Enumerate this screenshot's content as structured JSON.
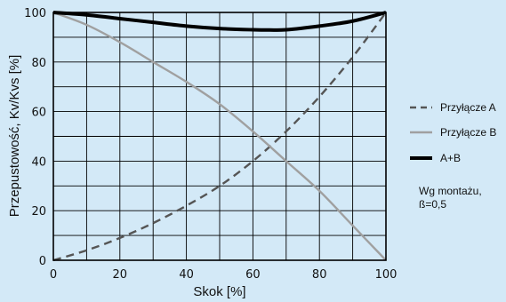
{
  "chart_data": {
    "type": "line",
    "xlabel": "Skok [%]",
    "ylabel": "Przepustowość, Kv/Kvs [%]",
    "xlim": [
      0,
      100
    ],
    "ylim": [
      0,
      100
    ],
    "xticks": [
      0,
      20,
      40,
      60,
      80,
      100
    ],
    "yticks": [
      0,
      20,
      40,
      60,
      80,
      100
    ],
    "grid": true,
    "legend_position": "right",
    "series": [
      {
        "name": "Przyłącze A",
        "style": "dashed",
        "color": "#555555",
        "x": [
          0,
          10,
          20,
          30,
          40,
          50,
          60,
          70,
          80,
          90,
          100
        ],
        "y": [
          0,
          4,
          9,
          15,
          22,
          30,
          40,
          52,
          66,
          82,
          100
        ]
      },
      {
        "name": "Przyłącze B",
        "style": "solid",
        "color": "#a0a0a0",
        "x": [
          0,
          10,
          20,
          30,
          40,
          50,
          60,
          70,
          80,
          90,
          100
        ],
        "y": [
          100,
          95,
          88,
          80,
          72,
          63,
          52,
          40,
          28,
          14,
          0
        ]
      },
      {
        "name": "A+B",
        "style": "solid-bold",
        "color": "#000000",
        "x": [
          0,
          10,
          20,
          30,
          40,
          50,
          60,
          65,
          70,
          80,
          90,
          100
        ],
        "y": [
          100,
          99,
          97.5,
          96,
          94.5,
          93.5,
          93,
          92.9,
          93,
          94.5,
          96.5,
          100
        ]
      }
    ],
    "note_lines": [
      "Wg montażu,",
      "ß=0,5"
    ]
  }
}
